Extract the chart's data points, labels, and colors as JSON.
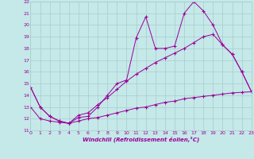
{
  "xlabel": "Windchill (Refroidissement éolien,°C)",
  "bg_color": "#c5e8e8",
  "grid_color": "#a8cccc",
  "line_color": "#990099",
  "xmin": 0,
  "xmax": 23,
  "ymin": 11,
  "ymax": 22,
  "line1_x": [
    0,
    1,
    2,
    3,
    4,
    5,
    6,
    7,
    8,
    9,
    10,
    11,
    12,
    13,
    14,
    15,
    16,
    17,
    18,
    19,
    20,
    21,
    22,
    23
  ],
  "line1_y": [
    14.7,
    13.0,
    12.2,
    11.8,
    11.6,
    12.1,
    12.2,
    13.0,
    14.0,
    15.0,
    15.3,
    18.9,
    20.7,
    18.0,
    18.0,
    18.2,
    21.0,
    22.0,
    21.2,
    20.0,
    18.3,
    17.5,
    16.0,
    14.3
  ],
  "line2_x": [
    0,
    1,
    2,
    3,
    4,
    5,
    6,
    7,
    8,
    9,
    10,
    11,
    12,
    13,
    14,
    15,
    16,
    17,
    18,
    19,
    20,
    21,
    22,
    23
  ],
  "line2_y": [
    14.7,
    13.0,
    12.2,
    11.8,
    11.6,
    12.3,
    12.5,
    13.2,
    13.8,
    14.5,
    15.2,
    15.8,
    16.3,
    16.8,
    17.2,
    17.6,
    18.0,
    18.5,
    19.0,
    19.2,
    18.3,
    17.5,
    16.0,
    14.3
  ],
  "line3_x": [
    0,
    1,
    2,
    3,
    4,
    5,
    6,
    7,
    8,
    9,
    10,
    11,
    12,
    13,
    14,
    15,
    16,
    17,
    18,
    19,
    20,
    21,
    22,
    23
  ],
  "line3_y": [
    13.0,
    12.0,
    11.8,
    11.7,
    11.6,
    11.8,
    12.0,
    12.1,
    12.3,
    12.5,
    12.7,
    12.9,
    13.0,
    13.2,
    13.4,
    13.5,
    13.7,
    13.8,
    13.9,
    14.0,
    14.1,
    14.2,
    14.25,
    14.3
  ]
}
